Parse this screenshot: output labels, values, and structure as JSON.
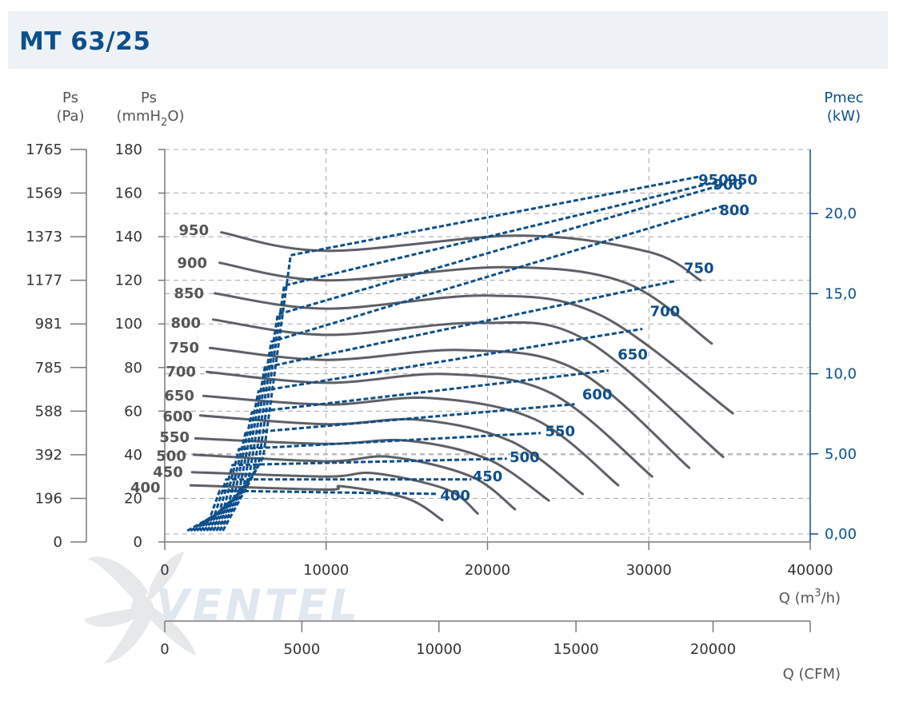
{
  "header": {
    "title": "MT 63/25"
  },
  "axis_titles": {
    "pa": [
      "Ps",
      "(Pa)"
    ],
    "mmh2o": {
      "line1": "Ps",
      "prefix": "(mmH",
      "sub": "2",
      "suffix": "O)"
    },
    "pmec": [
      "Pmec",
      "(kW)"
    ],
    "q_m3h": {
      "prefix": "Q (m",
      "sup": "3",
      "suffix": "/h)"
    },
    "q_cfm": "Q (CFM)"
  },
  "chart_data": {
    "type": "line",
    "title": "MT 63/25",
    "x_axis_m3h": {
      "range": [
        0,
        40000
      ],
      "ticks": [
        "0",
        "10000",
        "20000",
        "30000",
        "40000"
      ]
    },
    "x_axis_cfm": {
      "range": [
        0,
        23544
      ],
      "ticks": [
        "0",
        "5000",
        "10000",
        "15000",
        "20000"
      ],
      "tick_values": [
        0,
        5000,
        10000,
        15000,
        20000
      ]
    },
    "y_axis_mmh2o": {
      "range": [
        0,
        180
      ],
      "ticks": [
        "0",
        "20",
        "40",
        "60",
        "80",
        "100",
        "120",
        "140",
        "160",
        "180"
      ]
    },
    "y_axis_pa": {
      "ticks": [
        "0",
        "196",
        "392",
        "588",
        "785",
        "981",
        "1177",
        "1373",
        "1569",
        "1765"
      ]
    },
    "y_axis_kw": {
      "range": [
        -0.5,
        24.0
      ],
      "ticks": [
        "0,00",
        "5,00",
        "10,0",
        "15,0",
        "20,0"
      ],
      "tick_values": [
        0,
        5,
        10,
        15,
        20
      ]
    },
    "grid": true,
    "pressure_series": [
      {
        "name": "950",
        "points": [
          [
            3500,
            142
          ],
          [
            10000,
            133.5
          ],
          [
            22000,
            140.5
          ],
          [
            30000,
            133
          ],
          [
            33200,
            120
          ]
        ]
      },
      {
        "name": "900",
        "points": [
          [
            3400,
            128
          ],
          [
            10000,
            120
          ],
          [
            21000,
            126
          ],
          [
            28500,
            119
          ],
          [
            33900,
            91
          ]
        ]
      },
      {
        "name": "850",
        "points": [
          [
            3100,
            114
          ],
          [
            10000,
            107
          ],
          [
            20000,
            113
          ],
          [
            27000,
            104
          ],
          [
            35200,
            59
          ]
        ]
      },
      {
        "name": "800",
        "points": [
          [
            3000,
            102
          ],
          [
            10000,
            95
          ],
          [
            19500,
            100.5
          ],
          [
            26000,
            93
          ],
          [
            34600,
            39
          ]
        ]
      },
      {
        "name": "750",
        "points": [
          [
            2800,
            89
          ],
          [
            10000,
            83.5
          ],
          [
            18500,
            88
          ],
          [
            25500,
            79
          ],
          [
            32500,
            34
          ]
        ]
      },
      {
        "name": "700",
        "points": [
          [
            2600,
            78
          ],
          [
            10000,
            73
          ],
          [
            17500,
            77
          ],
          [
            24000,
            68
          ],
          [
            30200,
            30
          ]
        ]
      },
      {
        "name": "650",
        "points": [
          [
            2400,
            67
          ],
          [
            10000,
            63
          ],
          [
            16500,
            66
          ],
          [
            23000,
            56
          ],
          [
            28100,
            26
          ]
        ]
      },
      {
        "name": "600",
        "points": [
          [
            2200,
            58
          ],
          [
            10000,
            54
          ],
          [
            15800,
            56
          ],
          [
            21500,
            46
          ],
          [
            25900,
            22
          ]
        ]
      },
      {
        "name": "550",
        "points": [
          [
            1900,
            47.5
          ],
          [
            10000,
            45
          ],
          [
            15000,
            46.5
          ],
          [
            20000,
            38
          ],
          [
            23800,
            19
          ]
        ]
      },
      {
        "name": "500",
        "points": [
          [
            1800,
            40
          ],
          [
            10000,
            37
          ],
          [
            14000,
            39
          ],
          [
            19000,
            30
          ],
          [
            21700,
            15
          ]
        ]
      },
      {
        "name": "450",
        "points": [
          [
            1700,
            32
          ],
          [
            10000,
            30
          ],
          [
            13000,
            31.5
          ],
          [
            17500,
            24
          ],
          [
            19400,
            13
          ]
        ]
      },
      {
        "name": "400",
        "points": [
          [
            1600,
            26
          ],
          [
            10000,
            24
          ],
          [
            11000,
            25.5
          ],
          [
            15000,
            20
          ],
          [
            17200,
            10
          ]
        ]
      }
    ],
    "pressure_labels": [
      {
        "text": "950",
        "x": 1800,
        "y": 143
      },
      {
        "text": "900",
        "x": 1700,
        "y": 128
      },
      {
        "text": "850",
        "x": 1500,
        "y": 114
      },
      {
        "text": "800",
        "x": 1300,
        "y": 100.5
      },
      {
        "text": "750",
        "x": 1200,
        "y": 89
      },
      {
        "text": "700",
        "x": 1000,
        "y": 78
      },
      {
        "text": "650",
        "x": 900,
        "y": 67
      },
      {
        "text": "600",
        "x": 800,
        "y": 57.5
      },
      {
        "text": "550",
        "x": 600,
        "y": 48
      },
      {
        "text": "500",
        "x": 400,
        "y": 39.5
      },
      {
        "text": "450",
        "x": 200,
        "y": 32
      },
      {
        "text": "400",
        "x": -1200,
        "y": 25
      }
    ],
    "power_series": [
      {
        "name": "400",
        "points": [
          [
            1400,
            0.2
          ],
          [
            2800,
            1.0
          ],
          [
            3400,
            2.7
          ],
          [
            16800,
            2.5
          ]
        ]
      },
      {
        "name": "450",
        "points": [
          [
            1600,
            0.2
          ],
          [
            3100,
            1.2
          ],
          [
            3800,
            3.4
          ],
          [
            19000,
            3.4
          ]
        ]
      },
      {
        "name": "500",
        "points": [
          [
            1800,
            0.2
          ],
          [
            3400,
            1.4
          ],
          [
            4200,
            4.3
          ],
          [
            21200,
            4.7
          ]
        ]
      },
      {
        "name": "550",
        "points": [
          [
            2000,
            0.2
          ],
          [
            3700,
            1.7
          ],
          [
            4600,
            5.3
          ],
          [
            23300,
            6.3
          ]
        ]
      },
      {
        "name": "600",
        "points": [
          [
            2200,
            0.2
          ],
          [
            4000,
            2.0
          ],
          [
            5000,
            6.3
          ],
          [
            25400,
            8.1
          ]
        ]
      },
      {
        "name": "650",
        "points": [
          [
            2400,
            0.2
          ],
          [
            4300,
            2.3
          ],
          [
            5400,
            7.6
          ],
          [
            27500,
            10.2
          ]
        ]
      },
      {
        "name": "700",
        "points": [
          [
            2600,
            0.2
          ],
          [
            4600,
            2.6
          ],
          [
            5800,
            8.9
          ],
          [
            29600,
            12.8
          ]
        ]
      },
      {
        "name": "750",
        "points": [
          [
            2800,
            0.2
          ],
          [
            4900,
            3.0
          ],
          [
            6200,
            10.4
          ],
          [
            31700,
            15.8
          ]
        ]
      },
      {
        "name": "800",
        "points": [
          [
            3000,
            0.2
          ],
          [
            5200,
            3.4
          ],
          [
            6600,
            12.0
          ],
          [
            34700,
            20.5
          ]
        ]
      },
      {
        "name": "850",
        "points": [
          [
            3200,
            0.2
          ],
          [
            5500,
            3.8
          ],
          [
            7000,
            13.7
          ],
          [
            34900,
            21.9
          ]
        ]
      },
      {
        "name": "900",
        "points": [
          [
            3400,
            0.2
          ],
          [
            5800,
            4.3
          ],
          [
            7400,
            15.5
          ],
          [
            34300,
            22.0
          ]
        ]
      },
      {
        "name": "950",
        "points": [
          [
            3600,
            0.2
          ],
          [
            6100,
            4.8
          ],
          [
            7800,
            17.4
          ],
          [
            33100,
            22.3
          ]
        ]
      }
    ],
    "power_labels": [
      {
        "text": "950",
        "x": 34000,
        "y": 22.1
      },
      {
        "text": "950",
        "x": 35800,
        "y": 22.1
      },
      {
        "text": "900",
        "x": 34900,
        "y": 21.8
      },
      {
        "text": "800",
        "x": 35300,
        "y": 20.2
      },
      {
        "text": "750",
        "x": 33100,
        "y": 16.6
      },
      {
        "text": "700",
        "x": 31000,
        "y": 13.9
      },
      {
        "text": "650",
        "x": 29000,
        "y": 11.2
      },
      {
        "text": "600",
        "x": 26800,
        "y": 8.7
      },
      {
        "text": "550",
        "x": 24500,
        "y": 6.4
      },
      {
        "text": "500",
        "x": 22300,
        "y": 4.8
      },
      {
        "text": "450",
        "x": 20000,
        "y": 3.6
      },
      {
        "text": "400",
        "x": 18000,
        "y": 2.4
      }
    ]
  },
  "logo": {
    "text": "VENTEL"
  },
  "colors": {
    "pressure_curve": "#5e6067",
    "power_curve": "#0d4f8b",
    "grid": "#a8a8a8",
    "axis": "#7a7a7a",
    "header_bg": "#eef1f5",
    "title": "#0d4f8b"
  }
}
